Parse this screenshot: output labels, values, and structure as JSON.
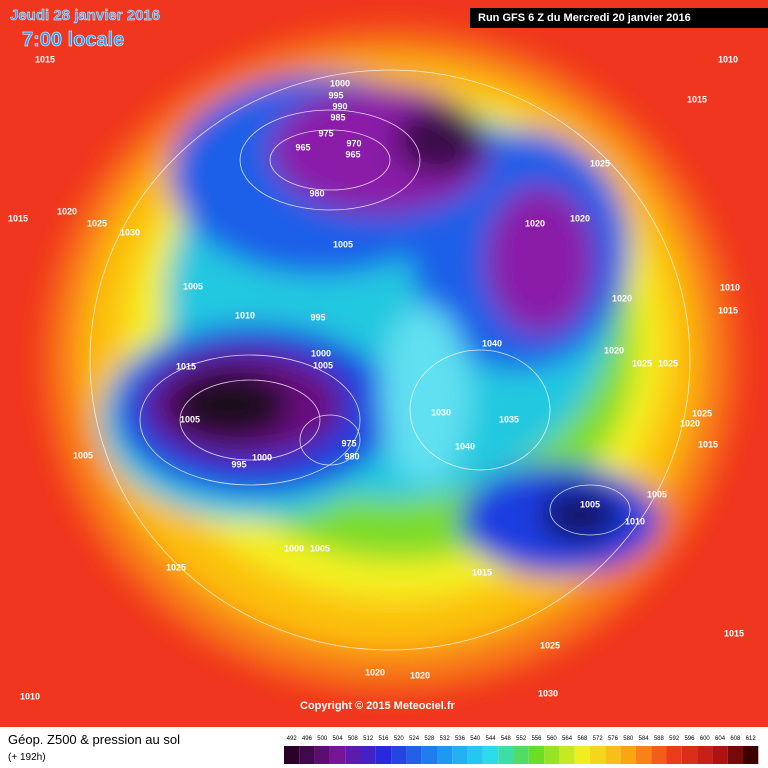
{
  "header": {
    "date": "Jeudi 28 janvier 2016",
    "time": "7:00 locale",
    "run": "Run GFS 6 Z du Mercredi 20 janvier 2016"
  },
  "footer": {
    "copyright": "Copyright © 2015 Meteociel.fr",
    "legend_title": "Géop. Z500 & pression au sol",
    "lead_time": "(+ 192h)"
  },
  "colorbar": {
    "ticks": [
      492,
      496,
      500,
      504,
      508,
      512,
      516,
      520,
      524,
      528,
      532,
      536,
      540,
      544,
      548,
      552,
      556,
      560,
      564,
      568,
      572,
      576,
      580,
      584,
      588,
      592,
      596,
      600,
      604,
      608,
      612
    ]
  },
  "isobar_labels": [
    1015,
    1010,
    1015,
    1000,
    995,
    990,
    985,
    975,
    970,
    965,
    965,
    980,
    1025,
    1020,
    1020,
    1015,
    1020,
    1025,
    1030,
    1005,
    1005,
    1010,
    995,
    1020,
    1010,
    1015,
    1040,
    1000,
    1005,
    1020,
    1025,
    1025,
    1015,
    1005,
    1030,
    1035,
    1025,
    1020,
    1015,
    1040,
    975,
    980,
    1000,
    995,
    1005,
    1005,
    1010,
    1005,
    1015,
    1000,
    1005,
    1025,
    1015,
    1025,
    1020,
    1020,
    1030,
    1010
  ]
}
